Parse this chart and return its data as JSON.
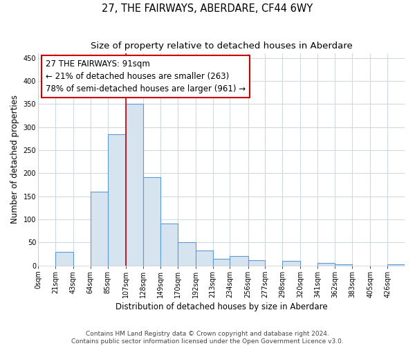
{
  "title": "27, THE FAIRWAYS, ABERDARE, CF44 6WY",
  "subtitle": "Size of property relative to detached houses in Aberdare",
  "xlabel": "Distribution of detached houses by size in Aberdare",
  "ylabel": "Number of detached properties",
  "bar_labels": [
    "0sqm",
    "21sqm",
    "43sqm",
    "64sqm",
    "85sqm",
    "107sqm",
    "128sqm",
    "149sqm",
    "170sqm",
    "192sqm",
    "213sqm",
    "234sqm",
    "256sqm",
    "277sqm",
    "298sqm",
    "320sqm",
    "341sqm",
    "362sqm",
    "383sqm",
    "405sqm",
    "426sqm"
  ],
  "bar_values": [
    0,
    30,
    0,
    160,
    285,
    350,
    192,
    91,
    50,
    33,
    14,
    20,
    11,
    0,
    10,
    0,
    5,
    2,
    0,
    0,
    2
  ],
  "bar_color": "#d6e4f0",
  "bar_edge_color": "#5b9bd5",
  "annotation_line1": "27 THE FAIRWAYS: 91sqm",
  "annotation_line2": "← 21% of detached houses are smaller (263)",
  "annotation_line3": "78% of semi-detached houses are larger (961) →",
  "annotation_box_edge": "#cc0000",
  "vline_x": 107,
  "vline_color": "#cc0000",
  "ylim": [
    0,
    460
  ],
  "yticks": [
    0,
    50,
    100,
    150,
    200,
    250,
    300,
    350,
    400,
    450
  ],
  "footnote": "Contains HM Land Registry data © Crown copyright and database right 2024.\nContains public sector information licensed under the Open Government Licence v3.0.",
  "background_color": "#ffffff",
  "grid_color": "#d0d8e0",
  "title_fontsize": 10.5,
  "subtitle_fontsize": 9.5,
  "axis_label_fontsize": 8.5,
  "tick_fontsize": 7,
  "annot_fontsize": 8.5
}
